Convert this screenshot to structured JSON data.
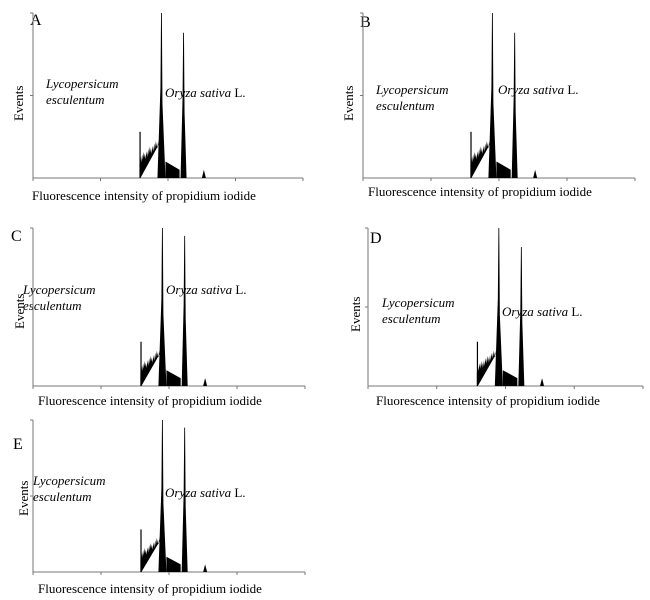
{
  "chart_data": [
    {
      "type": "histogram",
      "panel_label": "A",
      "ylabel": "Events",
      "xlabel": "Fluorescence intensity of propidium iodide",
      "x_scale": "log",
      "xlim": [
        1,
        10000
      ],
      "peaks": [
        {
          "name": "Lycopersicum esculentum",
          "x": 80,
          "height": 1.0
        },
        {
          "name": "Oryza sativa L.",
          "x": 170,
          "height": 0.88
        }
      ],
      "annotations": {
        "species1_line1": "Lycopersicum",
        "species1_line2": "esculentum",
        "species2_italic": "Oryza sativa",
        "species2_suffix": " L."
      }
    },
    {
      "type": "histogram",
      "panel_label": "B",
      "ylabel": "Events",
      "xlabel": "Fluorescence intensity of propidium iodide",
      "x_scale": "log",
      "xlim": [
        1,
        10000
      ],
      "peaks": [
        {
          "name": "Lycopersicum esculentum",
          "x": 80,
          "height": 1.0
        },
        {
          "name": "Oryza sativa L.",
          "x": 170,
          "height": 0.88
        }
      ],
      "annotations": {
        "species1_line1": "Lycopersicum",
        "species1_line2": "esculentum",
        "species2_italic": "Oryza sativa",
        "species2_suffix": " L."
      }
    },
    {
      "type": "histogram",
      "panel_label": "C",
      "ylabel": "Events",
      "xlabel": "Fluorescence intensity of propidium iodide",
      "x_scale": "log",
      "xlim": [
        1,
        10000
      ],
      "peaks": [
        {
          "name": "Lycopersicum esculentum",
          "x": 80,
          "height": 1.0
        },
        {
          "name": "Oryza sativa L.",
          "x": 170,
          "height": 0.95
        }
      ],
      "annotations": {
        "species1_line1": "Lycopersicum",
        "species1_line2": "esculentum",
        "species2_italic": "Oryza sativa",
        "species2_suffix": " L."
      }
    },
    {
      "type": "histogram",
      "panel_label": "D",
      "ylabel": "Events",
      "xlabel": "Fluorescence intensity of propidium iodide",
      "x_scale": "log",
      "xlim": [
        1,
        10000
      ],
      "peaks": [
        {
          "name": "Lycopersicum esculentum",
          "x": 80,
          "height": 1.0
        },
        {
          "name": "Oryza sativa L.",
          "x": 170,
          "height": 0.88
        }
      ],
      "annotations": {
        "species1_line1": "Lycopersicum",
        "species1_line2": "esculentum",
        "species2_italic": "Oryza sativa",
        "species2_suffix": " L."
      }
    },
    {
      "type": "histogram",
      "panel_label": "E",
      "ylabel": "Events",
      "xlabel": "Fluorescence intensity of propidium iodide",
      "x_scale": "log",
      "xlim": [
        1,
        10000
      ],
      "peaks": [
        {
          "name": "Lycopersicum esculentum",
          "x": 80,
          "height": 1.0
        },
        {
          "name": "Oryza sativa L.",
          "x": 170,
          "height": 0.95
        }
      ],
      "annotations": {
        "species1_line1": "Lycopersicum",
        "species1_line2": "esculentum",
        "species2_italic": "Oryza sativa",
        "species2_suffix": " L."
      }
    }
  ]
}
